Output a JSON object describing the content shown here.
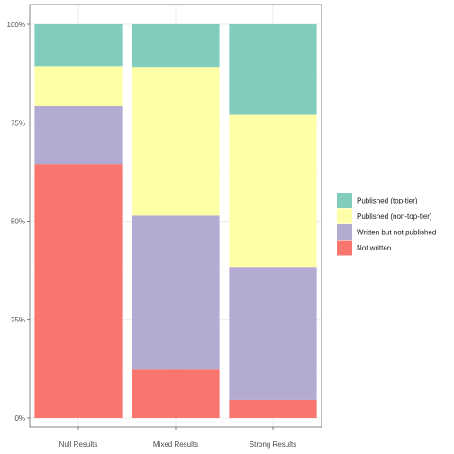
{
  "chart_data": {
    "type": "bar",
    "stacked": true,
    "normalized": true,
    "categories": [
      "Null Results",
      "Mixed Results",
      "Strong Results"
    ],
    "series": [
      {
        "name": "Not written",
        "color": "#F8766D",
        "values": [
          0.645,
          0.123,
          0.046
        ]
      },
      {
        "name": "Written but not published",
        "color": "#B3ABD1",
        "values": [
          0.147,
          0.391,
          0.338
        ]
      },
      {
        "name": "Published (non-top-tier)",
        "color": "#FFFFA8",
        "values": [
          0.102,
          0.378,
          0.386
        ]
      },
      {
        "name": "Published (top-tier)",
        "color": "#80CDBE",
        "values": [
          0.106,
          0.108,
          0.23
        ]
      }
    ],
    "legend_order": [
      "Published (top-tier)",
      "Published (non-top-tier)",
      "Written but not published",
      "Not written"
    ],
    "y_ticks": [
      "0%",
      "25%",
      "50%",
      "75%",
      "100%"
    ],
    "y_tick_values": [
      0,
      0.25,
      0.5,
      0.75,
      1.0
    ],
    "ylim": [
      0,
      1
    ],
    "title": "",
    "xlabel": "",
    "ylabel": "",
    "grid": true,
    "legend_position": "right",
    "theme_colors": {
      "grid_major": "#ebebeb",
      "grid_minor": "#f5f5f5",
      "panel_border": "#333333",
      "axis_text": "#4d4d4d"
    }
  }
}
